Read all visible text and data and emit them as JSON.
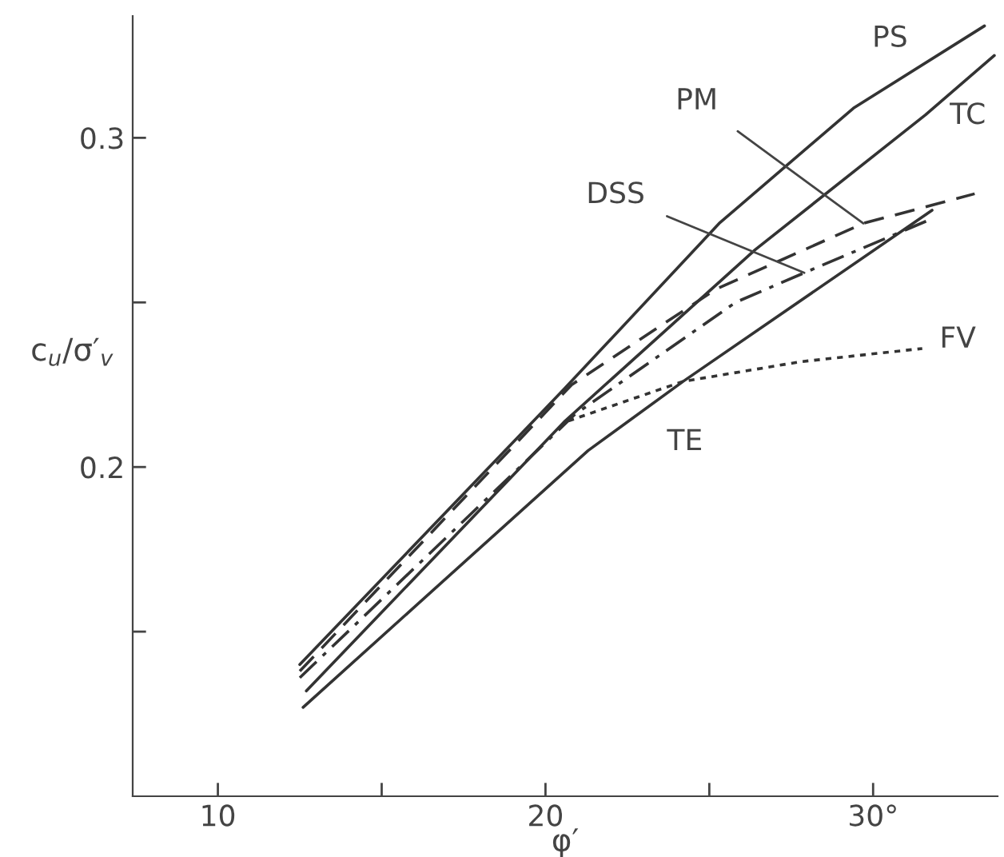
{
  "chart_data": {
    "type": "line",
    "xlabel": "φ′",
    "ylabel": "c$_{u}$/σ′$_{v}$",
    "xlim": [
      7.4,
      33.8
    ],
    "ylim": [
      0.1,
      0.337
    ],
    "xticks": [
      10,
      {
        "value": 15,
        "label": null
      },
      20,
      {
        "value": 25,
        "label": null
      },
      {
        "value": 30,
        "label": "30°"
      }
    ],
    "yticks": [
      {
        "value": 0.15,
        "label": null
      },
      {
        "value": 0.2,
        "label": "0.2"
      },
      {
        "value": 0.25,
        "label": null
      },
      {
        "value": 0.3,
        "label": "0.3"
      }
    ],
    "grid": false,
    "legend": false,
    "series": [
      {
        "color": "#333333",
        "line_style": "solid",
        "x": [
          12.5,
          20.6,
          25.3,
          29.4,
          33.4
        ],
        "values": [
          0.14,
          0.224,
          0.274,
          0.309,
          0.334
        ]
      },
      {
        "color": "#333333",
        "line_style": "solid",
        "x": [
          12.7,
          20.6,
          26.4,
          31.6,
          33.7
        ],
        "values": [
          0.132,
          0.214,
          0.266,
          0.307,
          0.325
        ]
      },
      {
        "color": "#333333",
        "line_style": "dashed",
        "x": [
          12.5,
          20.8,
          25.2,
          29.7,
          33.1
        ],
        "values": [
          0.138,
          0.225,
          0.254,
          0.274,
          0.283
        ]
      },
      {
        "color": "#333333",
        "line_style": "dashdot",
        "x": [
          12.5,
          20.9,
          25.8,
          27.9,
          31.7
        ],
        "values": [
          0.136,
          0.216,
          0.25,
          0.259,
          0.275
        ]
      },
      {
        "color": "#333333",
        "line_style": "solid",
        "x": [
          12.6,
          21.3,
          24.2,
          31.8
        ],
        "values": [
          0.127,
          0.205,
          0.226,
          0.278
        ]
      },
      {
        "color": "#333333",
        "line_style": "dotted",
        "x": [
          20.7,
          24.2,
          27.8,
          31.5
        ],
        "values": [
          0.214,
          0.226,
          0.232,
          0.236
        ]
      }
    ],
    "annotations": [
      {
        "text": "PS",
        "x": 31.6,
        "y": 0.322
      },
      {
        "text": "TC",
        "x": 31.4,
        "y": 0.308
      },
      {
        "text": "PM",
        "x": 29.7,
        "y": 0.274
      },
      {
        "text": "DSS",
        "x": 27.9,
        "y": 0.259
      },
      {
        "text": "FV",
        "x": 31.5,
        "y": 0.236
      },
      {
        "text": "TE",
        "x": 22.9,
        "y": 0.217
      }
    ]
  }
}
